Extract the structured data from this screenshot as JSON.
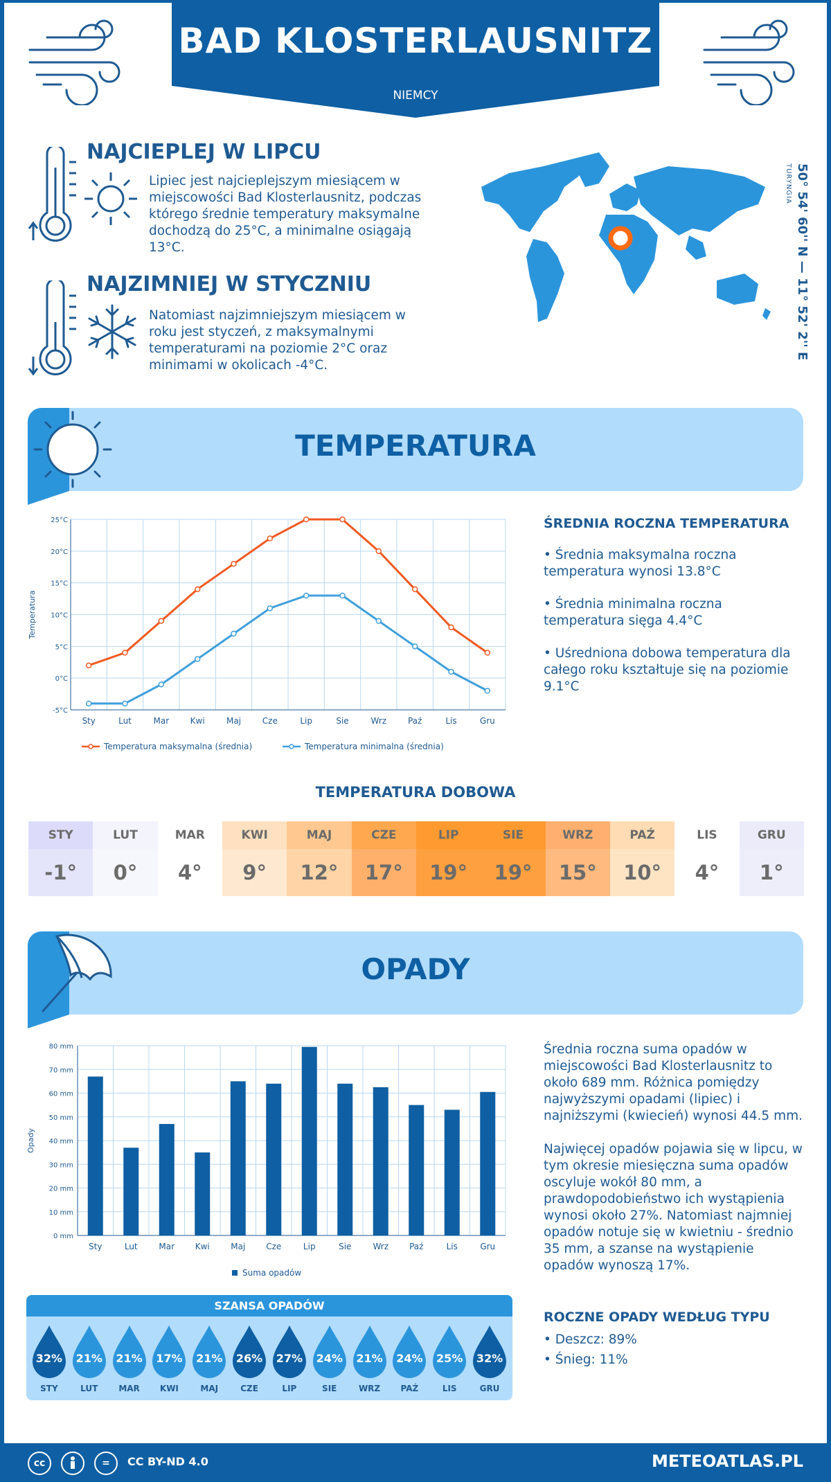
{
  "header": {
    "city": "BAD KLOSTERLAUSNITZ",
    "country": "NIEMCY"
  },
  "location": {
    "coords": "50° 54' 60'' N — 11° 52' 2'' E",
    "region": "TURYNGIA"
  },
  "warmest": {
    "title": "NAJCIEPLEJ W LIPCU",
    "text": "Lipiec jest najcieplejszym miesiącem w miejscowości Bad Klosterlausnitz, podczas którego średnie temperatury maksymalne dochodzą do 25°C, a minimalne osiągają 13°C."
  },
  "coldest": {
    "title": "NAJZIMNIEJ W STYCZNIU",
    "text": "Natomiast najzimniejszym miesiącem w roku jest styczeń, z maksymalnymi temperaturami na poziomie 2°C oraz minimami w okolicach -4°C."
  },
  "temperature_section": {
    "heading": "TEMPERATURA",
    "summary_title": "ŚREDNIA ROCZNA TEMPERATURA",
    "bullets": [
      "• Średnia maksymalna roczna temperatura wynosi 13.8°C",
      "• Średnia minimalna roczna temperatura sięga 4.4°C",
      "• Uśredniona dobowa temperatura dla całego roku kształtuje się na poziomie 9.1°C"
    ]
  },
  "daily_temperature": {
    "title": "TEMPERATURA DOBOWA",
    "months": [
      "STY",
      "LUT",
      "MAR",
      "KWI",
      "MAJ",
      "CZE",
      "LIP",
      "SIE",
      "WRZ",
      "PAŹ",
      "LIS",
      "GRU"
    ],
    "values": [
      "-1°",
      "0°",
      "4°",
      "9°",
      "12°",
      "17°",
      "19°",
      "19°",
      "15°",
      "10°",
      "4°",
      "1°"
    ],
    "header_colors": [
      "#dcdcfa",
      "#f4f4fc",
      "#ffffff",
      "#ffe0c0",
      "#ffc890",
      "#ffa850",
      "#ff9a30",
      "#ff9a30",
      "#ffb070",
      "#ffdcb4",
      "#ffffff",
      "#ebebfa"
    ],
    "value_colors": [
      "#e4e4fa",
      "#f6f6fd",
      "#ffffff",
      "#ffe8d0",
      "#ffd4a6",
      "#ffb06a",
      "#ffa040",
      "#ffa040",
      "#ffba80",
      "#ffe4c4",
      "#ffffff",
      "#eeeefb"
    ]
  },
  "precip_section": {
    "heading": "OPADY",
    "text1": "Średnia roczna suma opadów w miejscowości Bad Klosterlausnitz to około 689 mm. Różnica pomiędzy najwyższymi opadami (lipiec) i najniższymi (kwiecień) wynosi 44.5 mm.",
    "text2": "Najwięcej opadów pojawia się w lipcu, w tym okresie miesięczna suma opadów oscyluje wokół 80 mm, a prawdopodobieństwo ich wystąpienia wynosi około 27%. Natomiast najmniej opadów notuje się w kwietniu - średnio 35 mm, a szanse na wystąpienie opadów wynoszą 17%."
  },
  "precip_chance": {
    "title": "SZANSA OPADÓW",
    "months": [
      "STY",
      "LUT",
      "MAR",
      "KWI",
      "MAJ",
      "CZE",
      "LIP",
      "SIE",
      "WRZ",
      "PAŹ",
      "LIS",
      "GRU"
    ],
    "values": [
      "32%",
      "21%",
      "21%",
      "17%",
      "21%",
      "26%",
      "27%",
      "24%",
      "21%",
      "24%",
      "25%",
      "32%"
    ],
    "drop_colors": [
      "#0e5fa3",
      "#2b95dc",
      "#2b95dc",
      "#2b95dc",
      "#2b95dc",
      "#0e5fa3",
      "#0e5fa3",
      "#2b95dc",
      "#2b95dc",
      "#2b95dc",
      "#2b95dc",
      "#0e5fa3"
    ]
  },
  "precip_types": {
    "title": "ROCZNE OPADY WEDŁUG TYPU",
    "items": [
      "• Deszcz: 89%",
      "• Śnieg: 11%"
    ]
  },
  "footer": {
    "license": "CC BY-ND 4.0",
    "site": "METEOATLAS.PL"
  },
  "chart_data": [
    {
      "type": "line",
      "categories": [
        "Sty",
        "Lut",
        "Mar",
        "Kwi",
        "Maj",
        "Cze",
        "Lip",
        "Sie",
        "Wrz",
        "Paź",
        "Lis",
        "Gru"
      ],
      "series": [
        {
          "name": "Temperatura maksymalna (średnia)",
          "values": [
            2,
            4,
            9,
            14,
            18,
            22,
            25,
            25,
            20,
            14,
            8,
            4
          ],
          "color": "#f05a22"
        },
        {
          "name": "Temperatura minimalna (średnia)",
          "values": [
            -4,
            -4,
            -1,
            3,
            7,
            11,
            13,
            13,
            9,
            5,
            1,
            -2
          ],
          "color": "#3f9fdc"
        }
      ],
      "ylabel": "Temperatura",
      "yticks": [
        "-5°C",
        "0°C",
        "5°C",
        "10°C",
        "15°C",
        "20°C",
        "25°C"
      ],
      "ylim": [
        -5,
        25
      ],
      "grid": true,
      "legend": "bottom"
    },
    {
      "type": "bar",
      "categories": [
        "Sty",
        "Lut",
        "Mar",
        "Kwi",
        "Maj",
        "Cze",
        "Lip",
        "Sie",
        "Wrz",
        "Paź",
        "Lis",
        "Gru"
      ],
      "series": [
        {
          "name": "Suma opadów",
          "values": [
            67,
            37,
            47,
            35,
            65,
            64,
            79.5,
            64,
            62.5,
            55,
            53,
            60.5
          ],
          "color": "#0e5fa3"
        }
      ],
      "ylabel": "Opady",
      "yticks": [
        "0 mm",
        "10 mm",
        "20 mm",
        "30 mm",
        "40 mm",
        "50 mm",
        "60 mm",
        "70 mm",
        "80 mm"
      ],
      "ylim": [
        0,
        80
      ],
      "grid": true,
      "legend": "bottom"
    }
  ]
}
